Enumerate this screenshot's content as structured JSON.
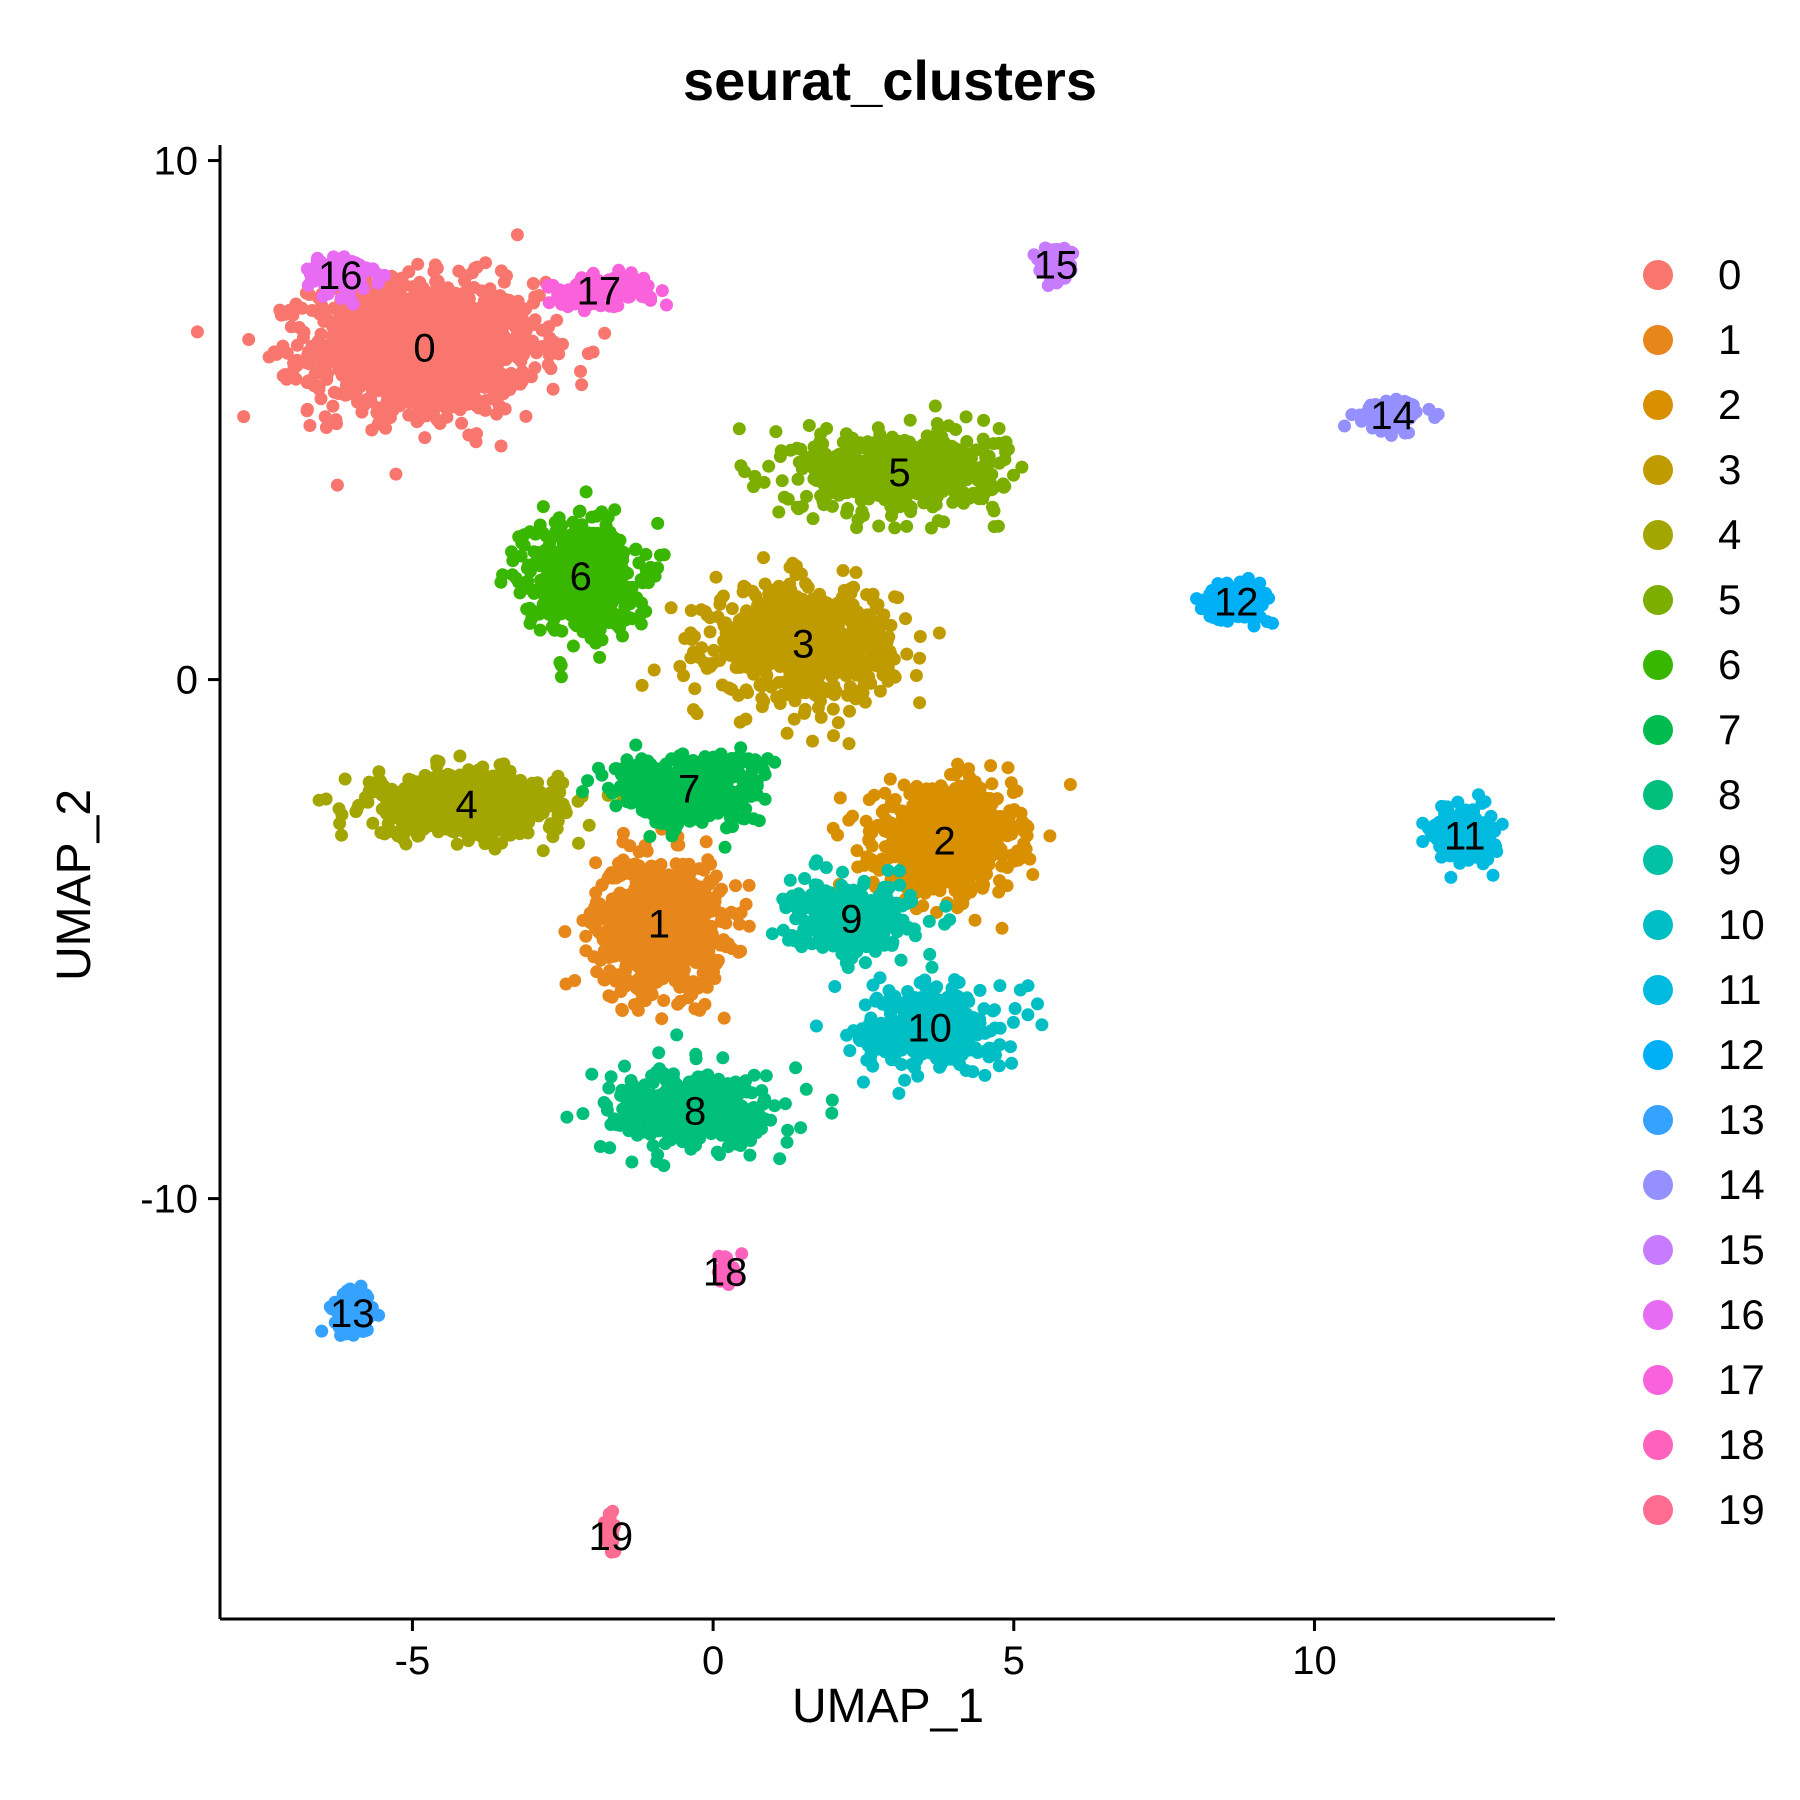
{
  "chart_data": {
    "type": "scatter",
    "title": "seurat_clusters",
    "xlabel": "UMAP_1",
    "ylabel": "UMAP_2",
    "xlim": [
      -8.2,
      14.0
    ],
    "ylim": [
      -18.1,
      10.3
    ],
    "x_ticks": [
      -5,
      0,
      5,
      10
    ],
    "y_ticks": [
      -10,
      0,
      10
    ],
    "x_tick_labels": [
      "-5",
      "0",
      "5",
      "10"
    ],
    "y_tick_labels": [
      "-10",
      "0",
      "10"
    ],
    "grid": false,
    "legend_position": "right",
    "clusters": [
      {
        "name": "0",
        "color": "#F8766D",
        "label_x": -4.8,
        "label_y": 6.4,
        "spread_x": 1.7,
        "spread_y": 1.15,
        "n": 1400
      },
      {
        "name": "1",
        "color": "#E7861B",
        "label_x": -0.9,
        "label_y": -4.7,
        "spread_x": 0.95,
        "spread_y": 1.15,
        "n": 850
      },
      {
        "name": "2",
        "color": "#D89000",
        "label_x": 3.85,
        "label_y": -3.1,
        "spread_x": 1.05,
        "spread_y": 0.9,
        "n": 800
      },
      {
        "name": "3",
        "color": "#C09B00",
        "label_x": 1.5,
        "label_y": 0.7,
        "spread_x": 1.35,
        "spread_y": 1.0,
        "n": 700
      },
      {
        "name": "4",
        "color": "#A3A500",
        "label_x": -4.1,
        "label_y": -2.4,
        "spread_x": 1.45,
        "spread_y": 0.55,
        "n": 600
      },
      {
        "name": "5",
        "color": "#7CAE00",
        "label_x": 3.1,
        "label_y": 4.0,
        "spread_x": 1.5,
        "spread_y": 0.7,
        "n": 600
      },
      {
        "name": "6",
        "color": "#39B600",
        "label_x": -2.2,
        "label_y": 2.0,
        "spread_x": 0.85,
        "spread_y": 1.0,
        "n": 500
      },
      {
        "name": "7",
        "color": "#00BB4E",
        "label_x": -0.4,
        "label_y": -2.1,
        "spread_x": 1.1,
        "spread_y": 0.6,
        "n": 450
      },
      {
        "name": "8",
        "color": "#00BF7D",
        "label_x": -0.3,
        "label_y": -8.3,
        "spread_x": 1.3,
        "spread_y": 0.7,
        "n": 400
      },
      {
        "name": "9",
        "color": "#00C1A3",
        "label_x": 2.3,
        "label_y": -4.6,
        "spread_x": 0.9,
        "spread_y": 0.6,
        "n": 350
      },
      {
        "name": "10",
        "color": "#00BFC4",
        "label_x": 3.6,
        "label_y": -6.7,
        "spread_x": 1.05,
        "spread_y": 0.75,
        "n": 350
      },
      {
        "name": "11",
        "color": "#00BAE0",
        "label_x": 12.5,
        "label_y": -3.0,
        "spread_x": 0.45,
        "spread_y": 0.45,
        "n": 220
      },
      {
        "name": "12",
        "color": "#00B0F6",
        "label_x": 8.7,
        "label_y": 1.5,
        "spread_x": 0.45,
        "spread_y": 0.3,
        "n": 200
      },
      {
        "name": "13",
        "color": "#35A2FF",
        "label_x": -6.0,
        "label_y": -12.2,
        "spread_x": 0.3,
        "spread_y": 0.4,
        "n": 150
      },
      {
        "name": "14",
        "color": "#9590FF",
        "label_x": 11.3,
        "label_y": 5.1,
        "spread_x": 0.45,
        "spread_y": 0.25,
        "n": 120
      },
      {
        "name": "15",
        "color": "#C77CFF",
        "label_x": 5.7,
        "label_y": 8.0,
        "spread_x": 0.25,
        "spread_y": 0.3,
        "n": 90
      },
      {
        "name": "16",
        "color": "#E76BF3",
        "label_x": -6.2,
        "label_y": 7.8,
        "spread_x": 0.5,
        "spread_y": 0.35,
        "n": 120
      },
      {
        "name": "17",
        "color": "#FA62DB",
        "label_x": -1.9,
        "label_y": 7.5,
        "spread_x": 0.8,
        "spread_y": 0.3,
        "n": 120
      },
      {
        "name": "18",
        "color": "#FF62BC",
        "label_x": 0.2,
        "label_y": -11.4,
        "spread_x": 0.18,
        "spread_y": 0.25,
        "n": 40
      },
      {
        "name": "19",
        "color": "#FF6C91",
        "label_x": -1.7,
        "label_y": -16.5,
        "spread_x": 0.07,
        "spread_y": 0.35,
        "n": 30
      }
    ]
  }
}
